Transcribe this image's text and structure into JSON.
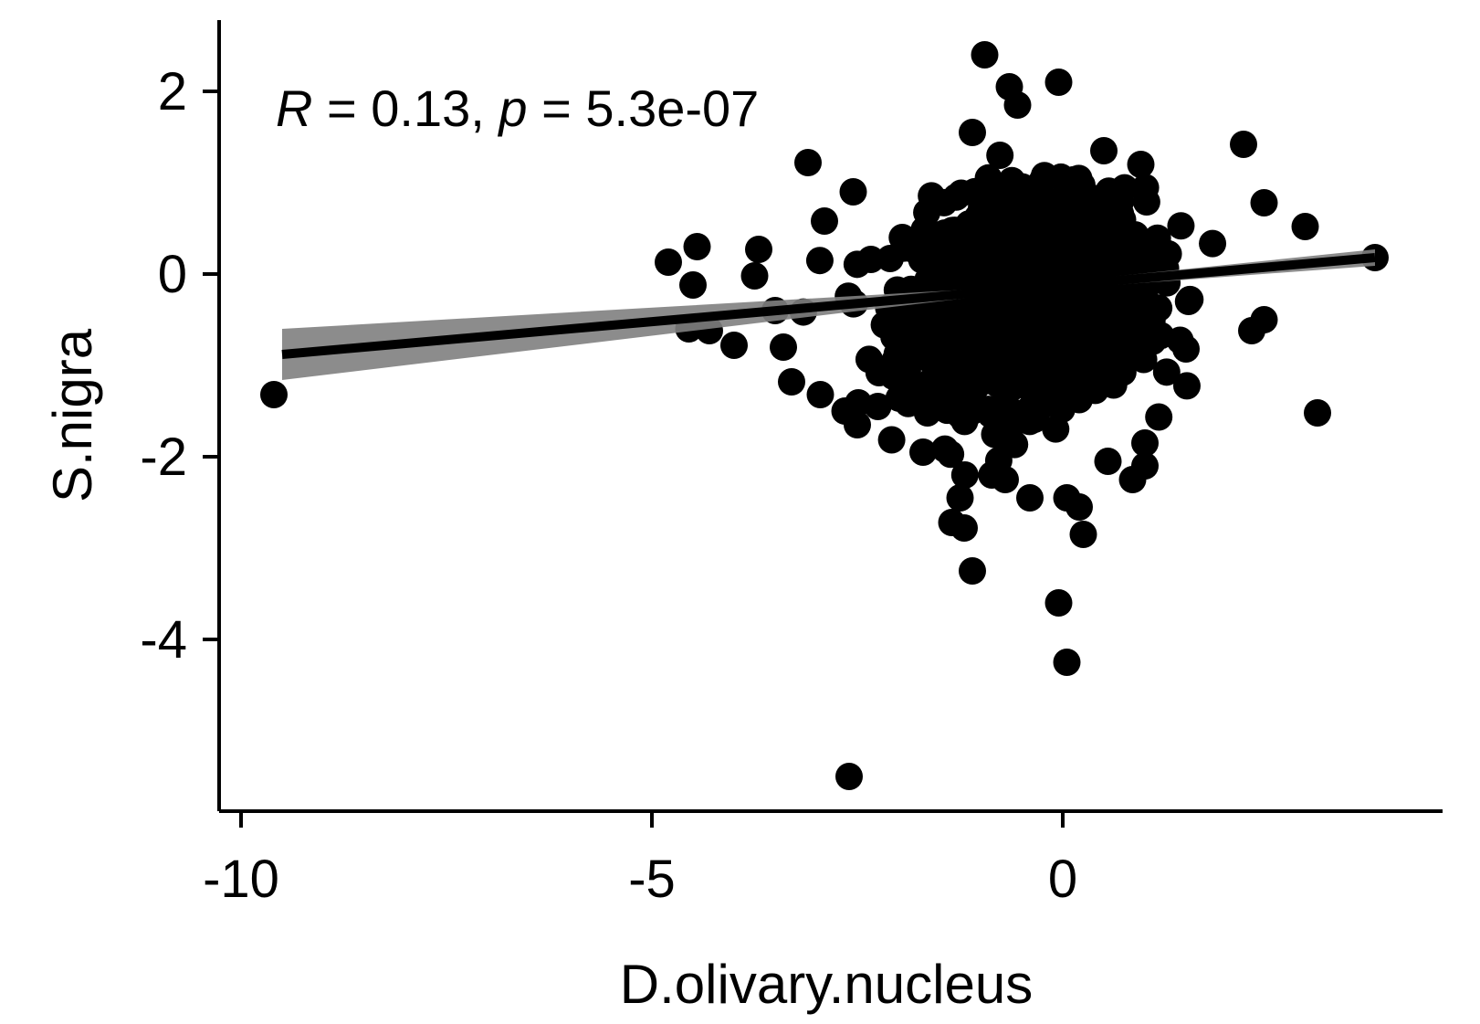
{
  "chart_data": {
    "type": "scatter",
    "xlabel": "D.olivary.nucleus",
    "ylabel": "S.nigra",
    "xlim": [
      -10.3,
      4.2
    ],
    "ylim": [
      -5.85,
      2.8
    ],
    "x_ticks": [
      -10,
      -5,
      0
    ],
    "x_tick_labels": [
      "-10",
      "-5",
      "0"
    ],
    "y_ticks": [
      2,
      0,
      -2,
      -4
    ],
    "y_tick_labels": [
      "2",
      "0",
      "-2",
      "-4"
    ],
    "annotation": {
      "r_symbol": "R",
      "r_text": " = 0.13, ",
      "p_symbol": "p",
      "p_text": " = 5.3e-07"
    },
    "grid": false,
    "point_color": "#000000",
    "fit_line": {
      "x": [
        -9.5,
        3.8
      ],
      "y": [
        -0.88,
        0.18
      ],
      "color": "#000000",
      "ci_color": "#808080",
      "ci_left_halfwidth": 0.28,
      "ci_mid_halfwidth": 0.03,
      "ci_right_halfwidth": 0.09
    },
    "outlier_points": [
      [
        -9.6,
        -1.32
      ],
      [
        -4.8,
        0.13
      ],
      [
        -4.45,
        0.3
      ],
      [
        -4.5,
        -0.12
      ],
      [
        -4.55,
        -0.6
      ],
      [
        -4.3,
        -0.62
      ],
      [
        -4.0,
        -0.78
      ],
      [
        -3.7,
        0.27
      ],
      [
        -3.75,
        -0.02
      ],
      [
        -3.5,
        -0.4
      ],
      [
        -3.4,
        -0.8
      ],
      [
        -3.3,
        -1.18
      ],
      [
        -3.1,
        1.22
      ],
      [
        -2.95,
        -1.32
      ],
      [
        -2.9,
        0.58
      ],
      [
        -2.65,
        -1.5
      ],
      [
        -2.5,
        -1.65
      ],
      [
        -2.55,
        0.9
      ],
      [
        -2.6,
        -5.5
      ],
      [
        -2.25,
        -1.45
      ],
      [
        -1.7,
        -1.95
      ],
      [
        -1.25,
        -2.45
      ],
      [
        -1.35,
        -2.72
      ],
      [
        -1.2,
        -2.78
      ],
      [
        -1.1,
        -3.25
      ],
      [
        -0.95,
        2.4
      ],
      [
        -0.65,
        2.05
      ],
      [
        -0.55,
        1.85
      ],
      [
        -0.05,
        2.1
      ],
      [
        -1.1,
        1.55
      ],
      [
        -0.7,
        -2.25
      ],
      [
        -0.4,
        -2.45
      ],
      [
        -0.05,
        -3.6
      ],
      [
        0.05,
        -4.25
      ],
      [
        0.25,
        -2.85
      ],
      [
        0.2,
        -2.55
      ],
      [
        0.05,
        -2.45
      ],
      [
        0.55,
        -2.05
      ],
      [
        0.85,
        -2.25
      ],
      [
        1.0,
        -2.1
      ],
      [
        2.2,
        1.42
      ],
      [
        2.45,
        0.78
      ],
      [
        2.95,
        0.52
      ],
      [
        3.8,
        0.18
      ],
      [
        2.3,
        -0.62
      ],
      [
        2.45,
        -0.5
      ],
      [
        3.1,
        -1.52
      ],
      [
        1.5,
        -0.82
      ],
      [
        0.95,
        1.2
      ],
      [
        0.5,
        1.35
      ],
      [
        1.0,
        -1.85
      ]
    ],
    "cluster": {
      "count": 1200,
      "x_min": -3.6,
      "x_max": 2.5,
      "x_mean": -0.45,
      "x_sd": 0.72,
      "y_mean": -0.25,
      "y_sd": 0.55,
      "slope": 0.08,
      "y_min": -2.2,
      "y_max": 1.3
    }
  }
}
